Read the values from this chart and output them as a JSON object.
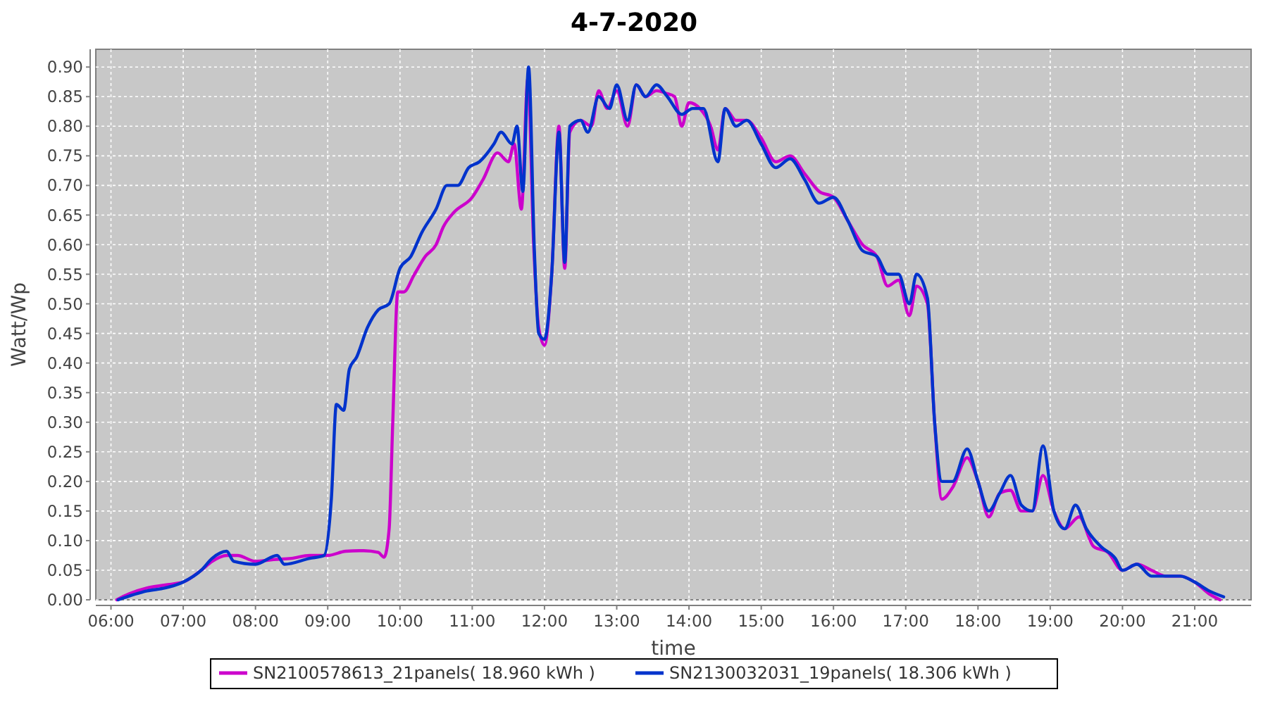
{
  "chart_data": {
    "type": "line",
    "title": "4-7-2020",
    "xlabel": "time",
    "ylabel": "Watt/Wp",
    "xlim": [
      5.79,
      21.78
    ],
    "xticks": [
      {
        "value": 6,
        "label": "06:00"
      },
      {
        "value": 7,
        "label": "07:00"
      },
      {
        "value": 8,
        "label": "08:00"
      },
      {
        "value": 9,
        "label": "09:00"
      },
      {
        "value": 10,
        "label": "10:00"
      },
      {
        "value": 11,
        "label": "11:00"
      },
      {
        "value": 12,
        "label": "12:00"
      },
      {
        "value": 13,
        "label": "13:00"
      },
      {
        "value": 14,
        "label": "14:00"
      },
      {
        "value": 15,
        "label": "15:00"
      },
      {
        "value": 16,
        "label": "16:00"
      },
      {
        "value": 17,
        "label": "17:00"
      },
      {
        "value": 18,
        "label": "18:00"
      },
      {
        "value": 19,
        "label": "19:00"
      },
      {
        "value": 20,
        "label": "20:00"
      },
      {
        "value": 21,
        "label": "21:00"
      }
    ],
    "ylim": [
      0,
      0.93
    ],
    "yticks": [
      {
        "value": 0,
        "label": "0.00"
      },
      {
        "value": 0.05,
        "label": "0.05"
      },
      {
        "value": 0.1,
        "label": "0.10"
      },
      {
        "value": 0.15,
        "label": "0.15"
      },
      {
        "value": 0.2,
        "label": "0.20"
      },
      {
        "value": 0.25,
        "label": "0.25"
      },
      {
        "value": 0.3,
        "label": "0.30"
      },
      {
        "value": 0.35,
        "label": "0.35"
      },
      {
        "value": 0.4,
        "label": "0.40"
      },
      {
        "value": 0.45,
        "label": "0.45"
      },
      {
        "value": 0.5,
        "label": "0.50"
      },
      {
        "value": 0.55,
        "label": "0.55"
      },
      {
        "value": 0.6,
        "label": "0.60"
      },
      {
        "value": 0.65,
        "label": "0.65"
      },
      {
        "value": 0.7,
        "label": "0.70"
      },
      {
        "value": 0.75,
        "label": "0.75"
      },
      {
        "value": 0.8,
        "label": "0.80"
      },
      {
        "value": 0.85,
        "label": "0.85"
      },
      {
        "value": 0.9,
        "label": "0.90"
      }
    ],
    "grid": true,
    "legend": "bottom",
    "line_style": "solid",
    "series": [
      {
        "name": "SN2100578613_21panels( 18.960 kWh )",
        "color": "#cc00cc",
        "x": [
          6.08,
          6.25,
          6.5,
          6.75,
          7.0,
          7.25,
          7.4,
          7.6,
          7.75,
          8.0,
          8.25,
          8.5,
          8.75,
          9.0,
          9.25,
          9.5,
          9.7,
          9.78,
          9.85,
          9.9,
          9.97,
          10.05,
          10.2,
          10.35,
          10.5,
          10.6,
          10.75,
          11.0,
          11.15,
          11.35,
          11.5,
          11.58,
          11.68,
          11.77,
          11.85,
          11.92,
          12.0,
          12.1,
          12.2,
          12.28,
          12.35,
          12.5,
          12.65,
          12.75,
          12.87,
          13.0,
          13.15,
          13.27,
          13.4,
          13.55,
          13.7,
          13.8,
          13.9,
          14.0,
          14.15,
          14.3,
          14.4,
          14.5,
          14.65,
          14.8,
          15.0,
          15.2,
          15.4,
          15.6,
          15.8,
          16.0,
          16.2,
          16.4,
          16.6,
          16.75,
          16.9,
          17.05,
          17.15,
          17.3,
          17.4,
          17.5,
          17.65,
          17.85,
          18.0,
          18.15,
          18.3,
          18.45,
          18.6,
          18.75,
          18.9,
          19.05,
          19.2,
          19.4,
          19.6,
          19.8,
          20.0,
          20.2,
          20.4,
          20.6,
          20.8,
          21.0,
          21.2,
          21.35
        ],
        "values": [
          0,
          0.01,
          0.02,
          0.025,
          0.03,
          0.05,
          0.065,
          0.075,
          0.075,
          0.065,
          0.068,
          0.07,
          0.075,
          0.075,
          0.082,
          0.083,
          0.08,
          0.072,
          0.12,
          0.3,
          0.52,
          0.52,
          0.55,
          0.58,
          0.6,
          0.63,
          0.655,
          0.68,
          0.71,
          0.755,
          0.74,
          0.77,
          0.66,
          0.88,
          0.6,
          0.46,
          0.43,
          0.55,
          0.8,
          0.56,
          0.79,
          0.81,
          0.8,
          0.86,
          0.83,
          0.86,
          0.8,
          0.87,
          0.85,
          0.86,
          0.855,
          0.85,
          0.8,
          0.84,
          0.83,
          0.8,
          0.76,
          0.83,
          0.81,
          0.81,
          0.78,
          0.74,
          0.75,
          0.72,
          0.69,
          0.68,
          0.64,
          0.6,
          0.58,
          0.53,
          0.54,
          0.48,
          0.53,
          0.5,
          0.3,
          0.17,
          0.19,
          0.24,
          0.2,
          0.14,
          0.18,
          0.185,
          0.15,
          0.15,
          0.21,
          0.15,
          0.12,
          0.14,
          0.09,
          0.08,
          0.05,
          0.06,
          0.05,
          0.04,
          0.04,
          0.03,
          0.01,
          0
        ]
      },
      {
        "name": "SN2130032031_19panels( 18.306 kWh )",
        "color": "#0033cc",
        "x": [
          6.1,
          6.5,
          6.75,
          7.0,
          7.25,
          7.4,
          7.6,
          7.7,
          8.0,
          8.3,
          8.4,
          8.75,
          8.95,
          9.05,
          9.12,
          9.22,
          9.3,
          9.4,
          9.55,
          9.7,
          9.85,
          10.0,
          10.15,
          10.3,
          10.5,
          10.65,
          10.8,
          10.95,
          11.1,
          11.3,
          11.4,
          11.55,
          11.62,
          11.7,
          11.78,
          11.86,
          11.92,
          12.0,
          12.1,
          12.2,
          12.28,
          12.35,
          12.5,
          12.6,
          12.75,
          12.9,
          13.0,
          13.15,
          13.27,
          13.4,
          13.55,
          13.7,
          13.9,
          14.05,
          14.2,
          14.4,
          14.5,
          14.65,
          14.8,
          15.0,
          15.2,
          15.4,
          15.6,
          15.8,
          16.0,
          16.2,
          16.4,
          16.6,
          16.75,
          16.9,
          17.05,
          17.15,
          17.3,
          17.4,
          17.5,
          17.65,
          17.85,
          18.0,
          18.15,
          18.3,
          18.45,
          18.6,
          18.75,
          18.9,
          19.05,
          19.2,
          19.35,
          19.5,
          19.7,
          19.9,
          20.0,
          20.2,
          20.4,
          20.6,
          20.8,
          21.0,
          21.2,
          21.4
        ],
        "values": [
          0,
          0.015,
          0.02,
          0.03,
          0.05,
          0.07,
          0.082,
          0.065,
          0.06,
          0.075,
          0.06,
          0.07,
          0.075,
          0.17,
          0.33,
          0.32,
          0.39,
          0.41,
          0.46,
          0.49,
          0.5,
          0.56,
          0.58,
          0.62,
          0.66,
          0.7,
          0.7,
          0.73,
          0.74,
          0.77,
          0.79,
          0.77,
          0.8,
          0.69,
          0.9,
          0.59,
          0.45,
          0.44,
          0.55,
          0.79,
          0.57,
          0.8,
          0.81,
          0.79,
          0.85,
          0.83,
          0.87,
          0.81,
          0.87,
          0.85,
          0.87,
          0.85,
          0.82,
          0.83,
          0.83,
          0.74,
          0.83,
          0.8,
          0.81,
          0.77,
          0.73,
          0.745,
          0.71,
          0.67,
          0.68,
          0.64,
          0.59,
          0.58,
          0.55,
          0.55,
          0.5,
          0.55,
          0.51,
          0.3,
          0.2,
          0.2,
          0.255,
          0.2,
          0.15,
          0.18,
          0.21,
          0.16,
          0.15,
          0.26,
          0.15,
          0.12,
          0.16,
          0.12,
          0.09,
          0.07,
          0.05,
          0.06,
          0.04,
          0.04,
          0.04,
          0.03,
          0.015,
          0.005
        ]
      }
    ]
  }
}
